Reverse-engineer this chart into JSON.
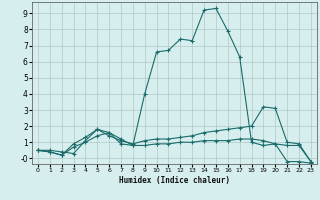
{
  "title": "",
  "xlabel": "Humidex (Indice chaleur)",
  "ylabel": "",
  "bg_color": "#d6eeed",
  "grid_color": "#b0c8c8",
  "line_color": "#1a6b6b",
  "xlim": [
    -0.5,
    23.5
  ],
  "ylim": [
    -0.35,
    9.7
  ],
  "xticks": [
    0,
    1,
    2,
    3,
    4,
    5,
    6,
    7,
    8,
    9,
    10,
    11,
    12,
    13,
    14,
    15,
    16,
    17,
    18,
    19,
    20,
    21,
    22,
    23
  ],
  "yticks": [
    0,
    1,
    2,
    3,
    4,
    5,
    6,
    7,
    8,
    9
  ],
  "ytick_labels": [
    "-0",
    "1",
    "2",
    "3",
    "4",
    "5",
    "6",
    "7",
    "8",
    "9"
  ],
  "series": [
    [
      0.5,
      0.5,
      0.4,
      0.3,
      1.1,
      1.8,
      1.6,
      0.9,
      0.8,
      4.0,
      6.6,
      6.7,
      7.4,
      7.3,
      9.2,
      9.3,
      7.9,
      6.3,
      1.0,
      0.8,
      0.9,
      -0.2,
      -0.2,
      -0.3
    ],
    [
      0.5,
      0.4,
      0.2,
      0.9,
      1.3,
      1.8,
      1.4,
      1.1,
      0.9,
      1.1,
      1.2,
      1.2,
      1.3,
      1.4,
      1.6,
      1.7,
      1.8,
      1.9,
      2.0,
      3.2,
      3.1,
      1.0,
      0.9,
      -0.2
    ],
    [
      0.5,
      0.4,
      0.2,
      0.7,
      1.0,
      1.4,
      1.6,
      1.2,
      0.8,
      0.8,
      0.9,
      0.9,
      1.0,
      1.0,
      1.1,
      1.1,
      1.1,
      1.2,
      1.2,
      1.1,
      0.9,
      0.8,
      0.8,
      -0.2
    ]
  ]
}
